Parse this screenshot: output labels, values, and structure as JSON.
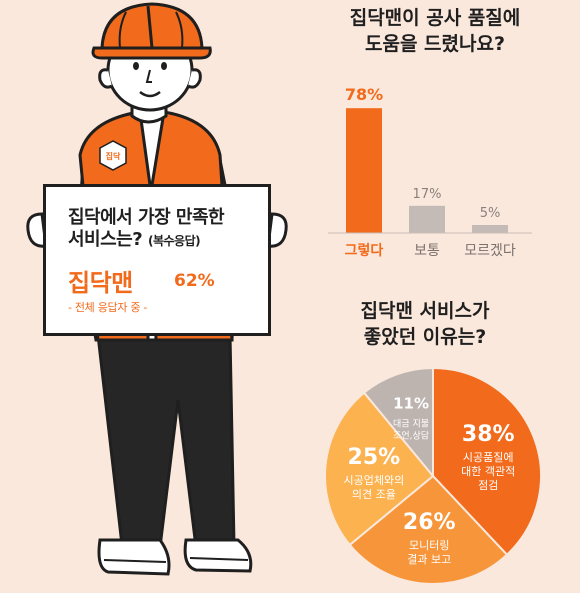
{
  "sign": {
    "title": "집닥에서 가장 만족한",
    "title2": "서비스는?",
    "sub": "(복수응답)",
    "brand": "집닥맨",
    "percent": "62%",
    "note": "- 전체 응답자 중 -"
  },
  "vest_logo": "집닥",
  "colors": {
    "bg": "#fbe8dc",
    "orange": "#f26a1b",
    "orange_mid": "#f7953a",
    "orange_light": "#fbb24f",
    "gray": "#c5bbb6",
    "gray_pie": "#bdb4b0",
    "dark": "#1f1f1f"
  },
  "chart_data": [
    {
      "type": "bar",
      "title": [
        "집닥맨이 공사 품질에",
        "도움을 드렸나요?"
      ],
      "categories": [
        "그렇다",
        "보통",
        "모르겠다"
      ],
      "values": [
        78,
        17,
        5
      ],
      "value_labels": [
        "78%",
        "17%",
        "5%"
      ],
      "ylim": [
        0,
        100
      ],
      "highlight": "그렇다"
    },
    {
      "type": "pie",
      "title": [
        "집닥맨 서비스가",
        "좋았던 이유는?"
      ],
      "slices": [
        {
          "label": [
            "시공품질에",
            "대한 객관적",
            "점검"
          ],
          "value": 38,
          "value_label": "38%"
        },
        {
          "label": [
            "모니터링",
            "결과 보고"
          ],
          "value": 26,
          "value_label": "26%"
        },
        {
          "label": [
            "시공업체와의",
            "의견 조율"
          ],
          "value": 25,
          "value_label": "25%"
        },
        {
          "label": [
            "대금 지불",
            "조언,상담"
          ],
          "value": 11,
          "value_label": "11%"
        }
      ]
    }
  ]
}
